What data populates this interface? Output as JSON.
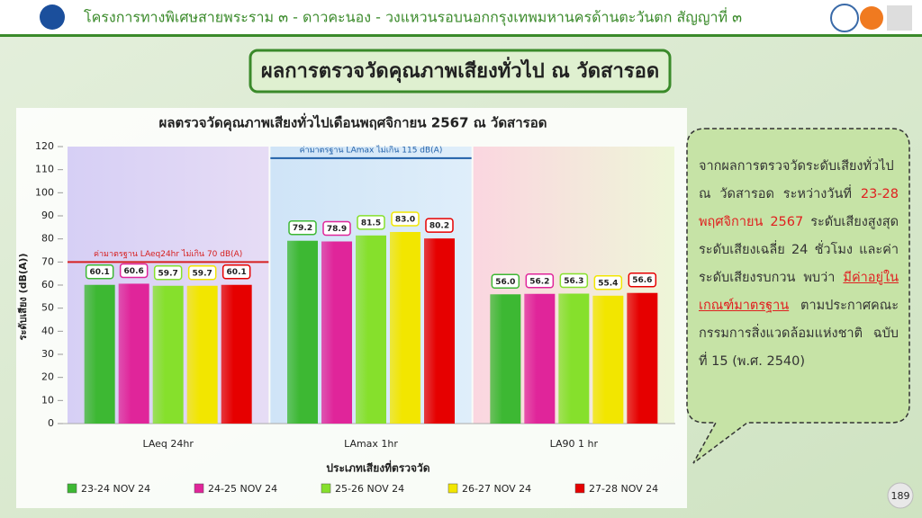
{
  "header": {
    "title": "โครงการทางพิเศษสายพระราม ๓ - ดาวคะนอง - วงแหวนรอบนอกกรุงเทพมหานครด้านตะวันตก สัญญาที่ ๓"
  },
  "slide_title": "ผลการตรวจวัดคุณภาพเสียงทั่วไป ณ วัดสารอด",
  "callout": {
    "parts": [
      "จากผลการตรวจวัดระดับเสียงทั่วไป ณ วัดสารอด ระหว่างวันที่ ",
      "23-28 พฤศจิกายน 2567",
      " ระดับเสียงสูงสุด ระดับเสียงเฉลี่ย 24 ชั่วโมง และค่าระดับเสียงรบกวน พบว่า ",
      "มีค่าอยู่ในเกณฑ์มาตรฐาน",
      " ตามประกาศคณะกรรมการสิ่งแวดล้อมแห่งชาติ ฉบับที่ 15 (พ.ศ. 2540)"
    ]
  },
  "page_number": 189,
  "chart_data": {
    "type": "bar",
    "title": "ผลตรวจวัดคุณภาพเสียงทั่วไปเดือนพฤศจิกายน 2567 ณ วัดสารอด",
    "x_label": "ประเภทเสียงที่ตรวจวัด",
    "y_label": "ระดับเสียง (dB(A))",
    "categories": [
      "LAeq 24hr",
      "LAmax 1hr",
      "LA90 1 hr"
    ],
    "series": [
      {
        "name": "23-24 NOV 24",
        "color": "#3db833",
        "values": [
          60.1,
          79.2,
          56.0
        ],
        "value_labels": [
          "60.1",
          "79.2",
          "56.0"
        ]
      },
      {
        "name": "24-25 NOV 24",
        "color": "#e0259a",
        "values": [
          60.6,
          78.9,
          56.2
        ],
        "value_labels": [
          "60.6",
          "78.9",
          "56.2"
        ]
      },
      {
        "name": "25-26 NOV 24",
        "color": "#86e02c",
        "values": [
          59.7,
          81.5,
          56.3
        ],
        "value_labels": [
          "59.7",
          "81.5",
          "56.3"
        ]
      },
      {
        "name": "26-27 NOV 24",
        "color": "#f2e600",
        "values": [
          59.7,
          83.0,
          55.4
        ],
        "value_labels": [
          "59.7",
          "83.0",
          "55.4"
        ]
      },
      {
        "name": "27-28 NOV 24",
        "color": "#e60000",
        "values": [
          60.1,
          80.2,
          56.6
        ],
        "value_labels": [
          "60.1",
          "80.2",
          "56.6"
        ]
      }
    ],
    "reference_lines": [
      {
        "label": "ค่ามาตรฐาน LAeq24hr ไม่เกิน 70 dB(A)",
        "value": 70,
        "color": "#d62020"
      },
      {
        "label": "ค่ามาตรฐาน LAmax ไม่เกิน 115 dB(A)",
        "value": 115,
        "color": "#1f5fa8"
      }
    ],
    "ylim": [
      0,
      120
    ],
    "yticks": [
      0,
      10,
      20,
      30,
      40,
      50,
      60,
      70,
      80,
      90,
      100,
      110,
      120
    ]
  }
}
